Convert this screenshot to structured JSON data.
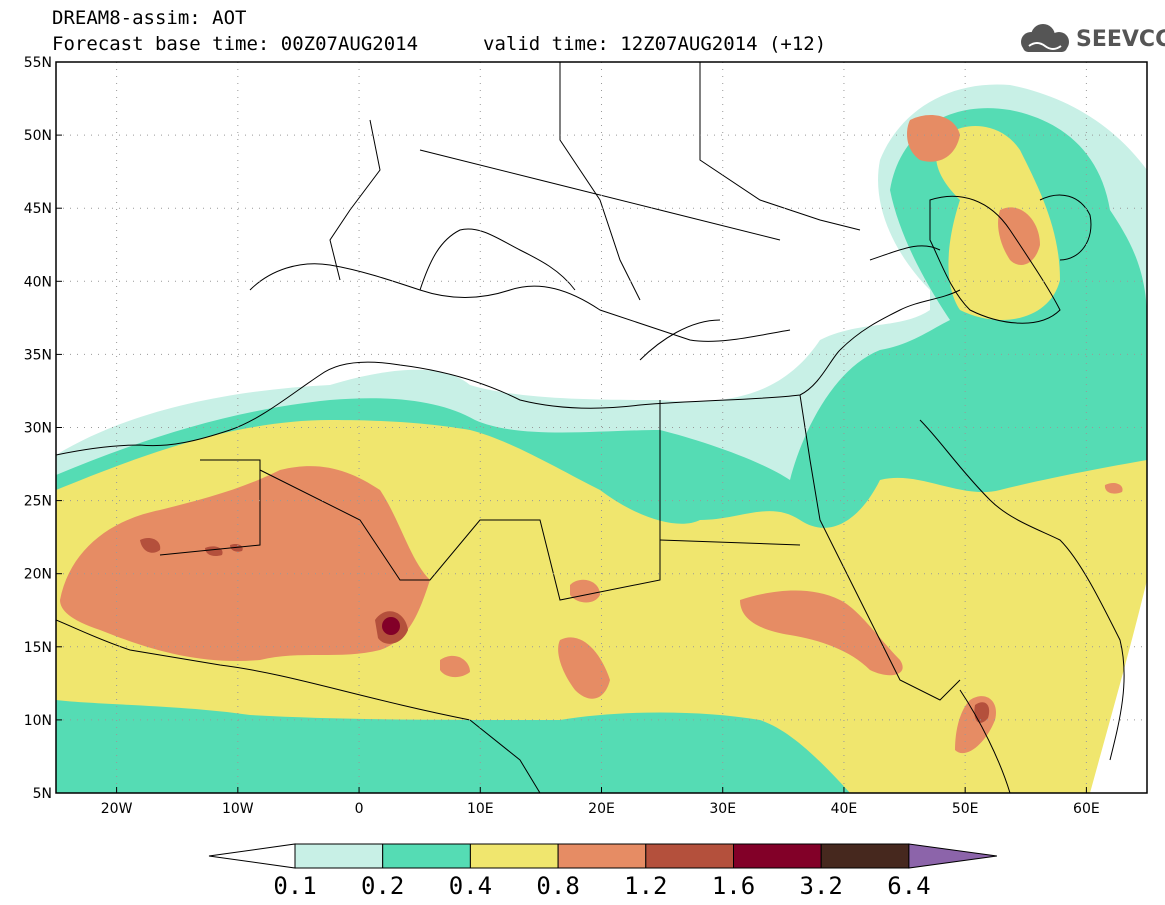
{
  "title": {
    "line1": "DREAM8-assim: AOT",
    "base": "Forecast base time: 00Z07AUG2014",
    "valid": "valid time: 12Z07AUG2014 (+12)"
  },
  "logo": {
    "text": "SEEVCCC",
    "icon": "cloud-icon"
  },
  "axes": {
    "lat_labels": [
      "55N",
      "50N",
      "45N",
      "40N",
      "35N",
      "30N",
      "25N",
      "20N",
      "15N",
      "10N",
      "5N"
    ],
    "lon_labels": [
      "20W",
      "10W",
      "0",
      "10E",
      "20E",
      "30E",
      "40E",
      "50E",
      "60E"
    ],
    "lon_range": [
      -25,
      65
    ],
    "lat_range": [
      5,
      55
    ]
  },
  "colorbar": {
    "levels": [
      "0.1",
      "0.2",
      "0.4",
      "0.8",
      "1.2",
      "1.6",
      "3.2",
      "6.4"
    ],
    "colors": [
      "#c8f0e6",
      "#55dcb4",
      "#f0e66e",
      "#e68c64",
      "#b4503c",
      "#820028",
      "#46281e",
      "#8c64aa"
    ]
  }
}
